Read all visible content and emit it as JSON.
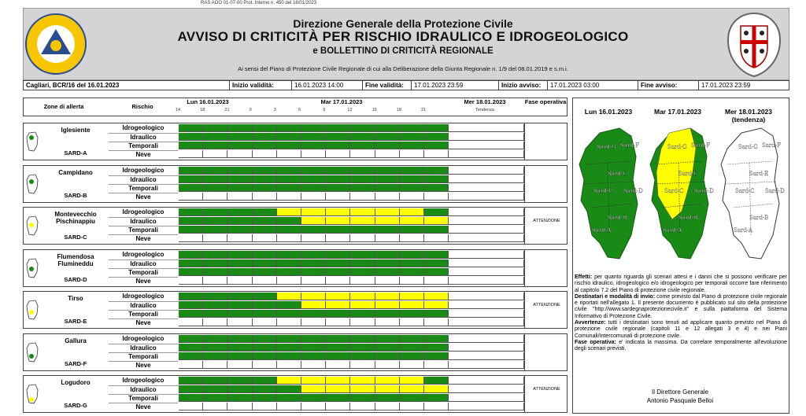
{
  "protocol": "RAS AOO 01-07-00 Prot. Interno n. 450 del 16/01/2023",
  "header": {
    "line1": "Direzione Generale della Protezione Civile",
    "line2": "AVVISO DI CRITICITÀ PER RISCHIO IDRAULICO E IDROGEOLOGICO",
    "line3": "e BOLLETTINO DI CRITICITÀ REGIONALE",
    "line4": "Ai sensi del Piano di Protezione Civile Regionale di cui alla Deliberazione della Giunta Regionale n. 1/9 del 08.01.2019 e s.m.i.",
    "logo_left_text": "REGIONE SARDEGNA",
    "logo_left_sub": "PROTEZIONE CIVILE"
  },
  "infobar": {
    "place": "Cagliari, BCR/16 del 16.01.2023",
    "inizio_validita_label": "Inizio validità:",
    "inizio_validita": "16.01.2023 14:00",
    "fine_validita_label": "Fine validità:",
    "fine_validita": "17.01.2023 23:59",
    "inizio_avviso_label": "Inizio avviso:",
    "inizio_avviso": "17.01.2023 03:00",
    "fine_avviso_label": "Fine avviso:",
    "fine_avviso": "17.01.2023 23:59"
  },
  "table": {
    "col_zone": "Zone di allerta",
    "col_rischio": "Rischio",
    "day1": "Lun 16.01.2023",
    "day2": "Mar 17.01.2023",
    "day3": "Mer 18.01.2023",
    "day3_sub": "Tendenza",
    "col_fase": "Fase operativa",
    "ticks": [
      "14",
      "18",
      "21",
      "0",
      "3",
      "6",
      "9",
      "12",
      "15",
      "18",
      "21"
    ],
    "risks": [
      "Idrogeologico",
      "Idraulico",
      "Temporali",
      "Neve"
    ],
    "zones": [
      {
        "name": "Iglesiente",
        "code": "SARD-A",
        "fase": "",
        "rows": [
          "ggggggggggg",
          "ggggggggggg",
          "ggggggggggg",
          ""
        ]
      },
      {
        "name": "Campidano",
        "code": "SARD-B",
        "fase": "",
        "rows": [
          "ggggggggggg",
          "ggggggggggg",
          "ggggggggggg",
          ""
        ]
      },
      {
        "name": "Montevecchio Pischinappiu",
        "code": "SARD-C",
        "fase": "ATTENZIONE",
        "rows": [
          "ggggyyyyyyg",
          "gggggyyyyyy",
          "ggggggggggg",
          ""
        ]
      },
      {
        "name": "Flumendosa Flumineddu",
        "code": "SARD-D",
        "fase": "",
        "rows": [
          "ggggggggggg",
          "ggggggggggg",
          "ggggggggggg",
          ""
        ]
      },
      {
        "name": "Tirso",
        "code": "SARD-E",
        "fase": "ATTENZIONE",
        "rows": [
          "ggggyyyyyyy",
          "gggggyyyyyy",
          "ggggggggggg",
          ""
        ]
      },
      {
        "name": "Gallura",
        "code": "SARD-F",
        "fase": "",
        "rows": [
          "ggggggggggg",
          "ggggggggggg",
          "ggggggggggg",
          ""
        ]
      },
      {
        "name": "Logudoro",
        "code": "SARD-G",
        "fase": "ATTENZIONE",
        "rows": [
          "ggggyyyyyyg",
          "gggggyyyyyy",
          "ggggggggggg",
          ""
        ]
      }
    ]
  },
  "maps": {
    "t1": "Lun 16.01.2023",
    "t2": "Mar 17.01.2023",
    "t3": "Mer 18.01.2023",
    "t3_sub": "(tendenza)",
    "labels": [
      "Sard-G",
      "Sard-F",
      "Sard-E",
      "Sard-C",
      "Sard-D",
      "Sard-B",
      "Sard-A"
    ],
    "colors": {
      "green": "#1a8a16",
      "yellow": "#ffff00"
    }
  },
  "notes": {
    "effetti_label": "Effetti:",
    "effetti": "per quanto riguarda gli scenari attesi e i danni che si possono verificare per rischio idraulico, idrogeologico e/o idrogeologico per temporali occorre fare riferimento al capitolo 7.2 del Piano di protezione civile regionale.",
    "destinatari_label": "Destinatari e modalità di invio:",
    "destinatari": "come previsto dal Piano di protezione civile regionale e riportati nell'allegato 1. Il presente documento è pubblicato sul sito della protezione civile \"http://www.sardegnaprotezionecivile.it\" e sulla piattaforma del Sistema Informativo di Protezione Civile.",
    "avvertenze_label": "Avvertenze:",
    "avvertenze": "tutti i destinatari sono tenuti ad applicare quanto previsto nel Piano di protezione civile regionale (capitoli 11 e 12 allegati 3 e 4) e nei Piani Comunali/Intercomunali di protezione civile.",
    "fase_label": "Fase operativa:",
    "fase": "e' indicata la massima. Da correlare temporalmente all'evoluzione degli scenari previsti."
  },
  "signature": {
    "role": "Il Direttore Generale",
    "name": "Antonio Pasquale Belloi"
  }
}
